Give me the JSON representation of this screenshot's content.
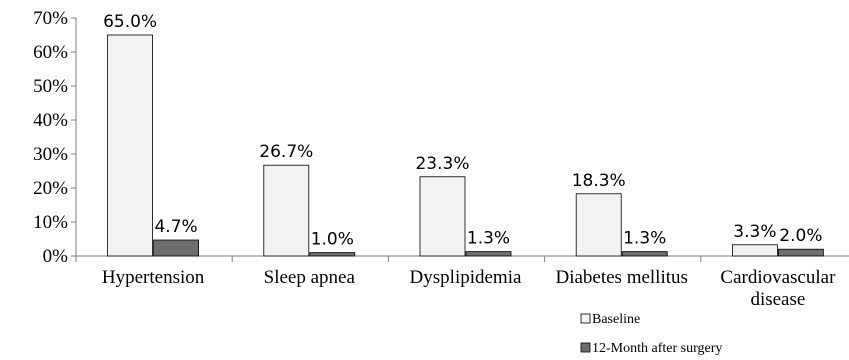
{
  "chart_data": {
    "type": "bar",
    "categories": [
      [
        "Hypertension"
      ],
      [
        "Sleep apnea"
      ],
      [
        "Dysplipidemia"
      ],
      [
        "Diabetes mellitus"
      ],
      [
        "Cardiovascular",
        "disease"
      ]
    ],
    "series": [
      {
        "name": "Baseline",
        "values": [
          65.0,
          26.7,
          23.3,
          18.3,
          3.3
        ],
        "labels": [
          "65.0%",
          "26.7%",
          "23.3%",
          "18.3%",
          "3.3%"
        ],
        "color": "#f2f2f2"
      },
      {
        "name": "12-Month after surgery",
        "values": [
          4.7,
          1.0,
          1.3,
          1.3,
          2.0
        ],
        "labels": [
          "4.7%",
          "1.0%",
          "1.3%",
          "1.3%",
          "2.0%"
        ],
        "color": "#6e6e6e"
      }
    ],
    "yticks": [
      "0%",
      "10%",
      "20%",
      "30%",
      "40%",
      "50%",
      "60%",
      "70%"
    ],
    "ylim": [
      0,
      70
    ],
    "grid": false,
    "legend": "bottom-right"
  }
}
